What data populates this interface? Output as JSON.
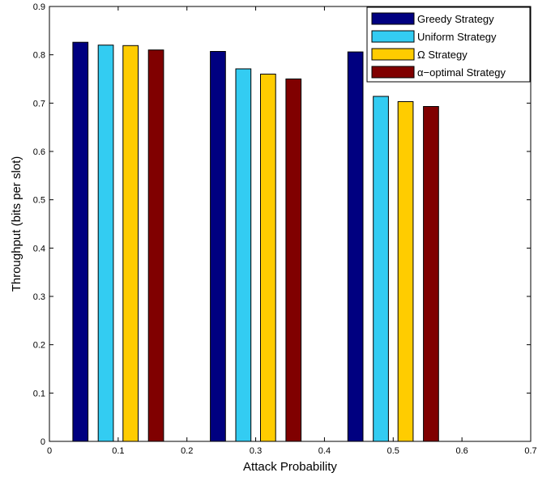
{
  "chart_data": {
    "type": "bar",
    "xlabel": "Attack Probability",
    "ylabel": "Throughput (bits per slot)",
    "xlim": [
      0,
      0.7
    ],
    "ylim": [
      0,
      0.9
    ],
    "xticks": [
      0,
      0.1,
      0.2,
      0.3,
      0.4,
      0.5,
      0.6,
      0.7
    ],
    "xtick_labels": [
      "0",
      "0.1",
      "0.2",
      "0.3",
      "0.4",
      "0.5",
      "0.6",
      "0.7"
    ],
    "yticks": [
      0,
      0.1,
      0.2,
      0.3,
      0.4,
      0.5,
      0.6,
      0.7,
      0.8,
      0.9
    ],
    "ytick_labels": [
      "0",
      "0.1",
      "0.2",
      "0.3",
      "0.4",
      "0.5",
      "0.6",
      "0.7",
      "0.8",
      "0.9"
    ],
    "grid": false,
    "legend_position": "top-right",
    "categories": [
      0.1,
      0.3,
      0.5
    ],
    "series": [
      {
        "name": "Greedy Strategy",
        "color": "#000080",
        "x": [
          0.045,
          0.245,
          0.445
        ],
        "values": [
          0.826,
          0.807,
          0.806
        ]
      },
      {
        "name": "Uniform Strategy",
        "color": "#33ccf2",
        "x": [
          0.082,
          0.282,
          0.482
        ],
        "values": [
          0.82,
          0.771,
          0.714
        ]
      },
      {
        "name": "Ω Strategy",
        "color": "#ffcc00",
        "x": [
          0.118,
          0.318,
          0.518
        ],
        "values": [
          0.819,
          0.76,
          0.703
        ]
      },
      {
        "name": "α−optimal Strategy",
        "color": "#800000",
        "x": [
          0.155,
          0.355,
          0.555
        ],
        "values": [
          0.81,
          0.75,
          0.693
        ]
      }
    ],
    "bar_width": 0.022
  }
}
